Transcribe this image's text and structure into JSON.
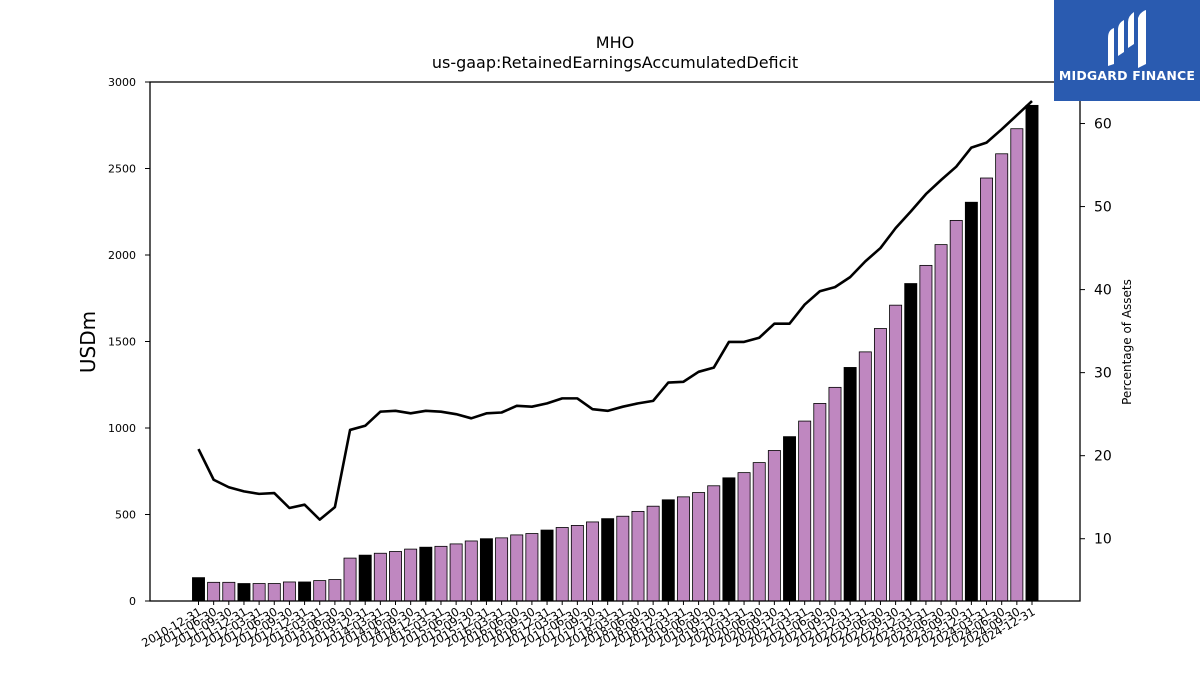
{
  "chart_data": {
    "type": "bar",
    "title": "MHO",
    "subtitle": "us-gaap:RetainedEarningsAccumulatedDeficit",
    "ylabel": "USDm",
    "y2label": "Percentage of Assets",
    "ylim": [
      0,
      3000
    ],
    "y2lim": [
      2.5,
      65
    ],
    "yticks": [
      0,
      500,
      1000,
      1500,
      2000,
      2500,
      3000
    ],
    "y2ticks": [
      10,
      20,
      30,
      40,
      50,
      60
    ],
    "grid": false,
    "colors": {
      "bar_purple": "#bf87c0",
      "bar_black": "#000000",
      "line": "#000000",
      "logo_bg": "#2a5bb0"
    },
    "categories": [
      "2010-12-31",
      "2011-06-30",
      "2011-09-30",
      "2011-12-31",
      "2012-03-31",
      "2012-06-30",
      "2012-09-30",
      "2012-12-31",
      "2013-03-31",
      "2013-06-30",
      "2013-09-30",
      "2013-12-31",
      "2014-03-31",
      "2014-06-30",
      "2014-09-30",
      "2014-12-31",
      "2015-03-31",
      "2015-06-30",
      "2015-09-30",
      "2015-12-31",
      "2016-03-31",
      "2016-06-30",
      "2016-09-30",
      "2016-12-31",
      "2017-03-31",
      "2017-06-30",
      "2017-09-30",
      "2017-12-31",
      "2018-03-31",
      "2018-06-30",
      "2018-09-30",
      "2018-12-31",
      "2019-03-31",
      "2019-06-30",
      "2019-09-30",
      "2019-12-31",
      "2020-03-31",
      "2020-06-30",
      "2020-09-30",
      "2020-12-31",
      "2021-03-31",
      "2021-06-30",
      "2021-09-30",
      "2021-12-31",
      "2022-03-31",
      "2022-06-30",
      "2022-09-30",
      "2022-12-31",
      "2023-03-31",
      "2023-06-30",
      "2023-09-30",
      "2023-12-31",
      "2024-03-31",
      "2024-06-30",
      "2024-09-30",
      "2024-12-31"
    ],
    "x_tick_labels": [
      "2010-12-31",
      "2011-06-30",
      "2011-09-30",
      "2011-12-31",
      "2012-03-31",
      "2012-06-30",
      "2012-09-30",
      "2012-12-31",
      "2013-03-31",
      "2013-06-30",
      "2013-09-30",
      "2013-12-31",
      "2014-03-31",
      "2014-06-30",
      "2014-09-30",
      "2014-12-31",
      "2015-03-31",
      "2015-06-30",
      "2015-09-30",
      "2015-12-31",
      "2016-03-31",
      "2016-06-30",
      "2016-09-30",
      "2016-12-31",
      "2017-03-31",
      "2017-06-30",
      "2017-09-30",
      "2017-12-31",
      "2018-03-31",
      "2018-06-30",
      "2018-09-30",
      "2018-12-31",
      "2019-03-31",
      "2019-06-30",
      "2019-09-30",
      "2019-12-31",
      "2020-03-31",
      "2020-06-30",
      "2020-09-30",
      "2020-12-31",
      "2021-03-31",
      "2021-06-30",
      "2021-09-30",
      "2021-12-31",
      "2022-03-31",
      "2022-06-30",
      "2022-09-30",
      "2022-12-31",
      "2023-03-31",
      "2023-06-30",
      "2023-09-30",
      "2023-12-31",
      "2024-03-31",
      "2024-06-30",
      "2024-09-30",
      "2024-12-31"
    ],
    "bar_colors": [
      "black",
      "purple",
      "purple",
      "black",
      "purple",
      "purple",
      "purple",
      "black",
      "purple",
      "purple",
      "purple",
      "black",
      "purple",
      "purple",
      "purple",
      "black",
      "purple",
      "purple",
      "purple",
      "black",
      "purple",
      "purple",
      "purple",
      "black",
      "purple",
      "purple",
      "purple",
      "black",
      "purple",
      "purple",
      "purple",
      "black",
      "purple",
      "purple",
      "purple",
      "black",
      "purple",
      "purple",
      "purple",
      "black",
      "purple",
      "purple",
      "purple",
      "black",
      "purple",
      "purple",
      "purple",
      "black",
      "purple",
      "purple",
      "purple",
      "black",
      "purple",
      "purple",
      "purple",
      "black"
    ],
    "series": [
      {
        "values": [
          135,
          108,
          108,
          101,
          101,
          101,
          110,
          110,
          118,
          124,
          248,
          265,
          276,
          286,
          300,
          311,
          316,
          330,
          347,
          360,
          365,
          382,
          390,
          410,
          425,
          437,
          457,
          476,
          490,
          518,
          548,
          585,
          602,
          627,
          666,
          712,
          742,
          800,
          870,
          950,
          1040,
          1142,
          1235,
          1350,
          1440,
          1575,
          1710,
          1835,
          1940,
          2060,
          2200,
          2305,
          2445,
          2585,
          2730,
          2865
        ]
      },
      {
        "axis": "right",
        "values": [
          20.8,
          17.1,
          16.2,
          15.7,
          15.4,
          15.5,
          13.7,
          14.1,
          12.3,
          13.8,
          23.1,
          23.6,
          25.3,
          25.4,
          25.1,
          25.4,
          25.3,
          25.0,
          24.5,
          25.1,
          25.2,
          26.0,
          25.9,
          26.3,
          26.9,
          26.9,
          25.6,
          25.4,
          25.9,
          26.3,
          26.6,
          28.8,
          28.9,
          30.1,
          30.6,
          33.7,
          33.7,
          34.2,
          35.9,
          35.9,
          38.2,
          39.8,
          40.3,
          41.5,
          43.4,
          45.0,
          47.4,
          49.4,
          51.5,
          53.2,
          54.8,
          57.1,
          57.7,
          59.3,
          61.0,
          62.7
        ]
      }
    ]
  },
  "logo": {
    "text": "MIDGARD FINANCE"
  }
}
